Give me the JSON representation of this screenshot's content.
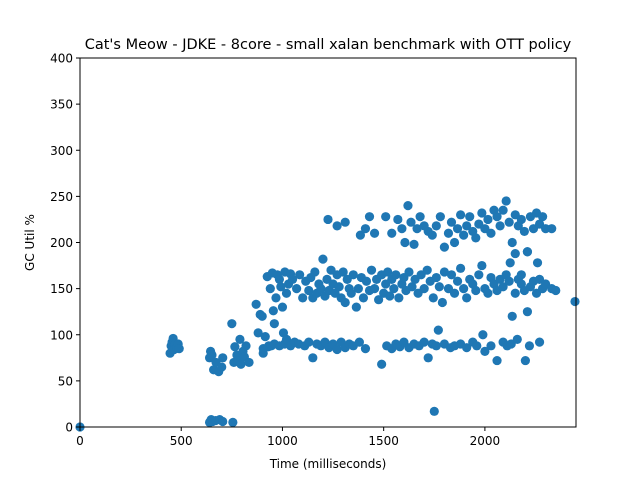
{
  "chart_data": {
    "type": "scatter",
    "title": "Cat's Meow - JDKE - 8core -  small xalan benchmark with OTT policy",
    "xlabel": "Time (milliseconds)",
    "ylabel": "GC Util %",
    "xlim": [
      0,
      2450
    ],
    "ylim": [
      0,
      400
    ],
    "xticks": [
      0,
      500,
      1000,
      1500,
      2000
    ],
    "yticks": [
      0,
      50,
      100,
      150,
      200,
      250,
      300,
      350,
      400
    ],
    "grid": false,
    "legend": "none",
    "color": "#1f77b4",
    "points": [
      [
        0,
        0
      ],
      [
        445,
        80
      ],
      [
        450,
        88
      ],
      [
        455,
        92
      ],
      [
        460,
        96
      ],
      [
        465,
        84
      ],
      [
        470,
        90
      ],
      [
        478,
        86
      ],
      [
        485,
        90
      ],
      [
        490,
        85
      ],
      [
        640,
        5
      ],
      [
        648,
        8
      ],
      [
        655,
        6
      ],
      [
        670,
        7
      ],
      [
        690,
        8
      ],
      [
        705,
        6
      ],
      [
        755,
        5
      ],
      [
        640,
        75
      ],
      [
        645,
        82
      ],
      [
        652,
        78
      ],
      [
        660,
        62
      ],
      [
        672,
        70
      ],
      [
        685,
        60
      ],
      [
        700,
        65
      ],
      [
        705,
        75
      ],
      [
        750,
        112
      ],
      [
        760,
        70
      ],
      [
        765,
        87
      ],
      [
        775,
        78
      ],
      [
        780,
        72
      ],
      [
        790,
        95
      ],
      [
        795,
        68
      ],
      [
        805,
        82
      ],
      [
        812,
        76
      ],
      [
        820,
        88
      ],
      [
        835,
        70
      ],
      [
        870,
        133
      ],
      [
        880,
        102
      ],
      [
        890,
        122
      ],
      [
        900,
        120
      ],
      [
        905,
        80
      ],
      [
        915,
        98
      ],
      [
        925,
        163
      ],
      [
        932,
        88
      ],
      [
        940,
        150
      ],
      [
        950,
        167
      ],
      [
        955,
        126
      ],
      [
        960,
        112
      ],
      [
        968,
        140
      ],
      [
        975,
        165
      ],
      [
        985,
        160
      ],
      [
        992,
        152
      ],
      [
        1000,
        130
      ],
      [
        1005,
        102
      ],
      [
        1012,
        168
      ],
      [
        1020,
        145
      ],
      [
        1030,
        155
      ],
      [
        1040,
        166
      ],
      [
        1050,
        160
      ],
      [
        905,
        85
      ],
      [
        930,
        87
      ],
      [
        945,
        88
      ],
      [
        960,
        90
      ],
      [
        985,
        88
      ],
      [
        1010,
        90
      ],
      [
        1020,
        95
      ],
      [
        1040,
        88
      ],
      [
        1060,
        92
      ],
      [
        1080,
        90
      ],
      [
        1070,
        150
      ],
      [
        1085,
        165
      ],
      [
        1100,
        140
      ],
      [
        1115,
        158
      ],
      [
        1130,
        148
      ],
      [
        1140,
        162
      ],
      [
        1150,
        140
      ],
      [
        1160,
        168
      ],
      [
        1170,
        145
      ],
      [
        1180,
        155
      ],
      [
        1190,
        150
      ],
      [
        1200,
        182
      ],
      [
        1210,
        142
      ],
      [
        1220,
        160
      ],
      [
        1230,
        148
      ],
      [
        1240,
        170
      ],
      [
        1250,
        155
      ],
      [
        1260,
        145
      ],
      [
        1270,
        165
      ],
      [
        1280,
        152
      ],
      [
        1290,
        140
      ],
      [
        1300,
        168
      ],
      [
        1310,
        135
      ],
      [
        1320,
        160
      ],
      [
        1330,
        150
      ],
      [
        1340,
        145
      ],
      [
        1110,
        88
      ],
      [
        1130,
        92
      ],
      [
        1150,
        75
      ],
      [
        1170,
        90
      ],
      [
        1190,
        88
      ],
      [
        1210,
        92
      ],
      [
        1230,
        86
      ],
      [
        1250,
        90
      ],
      [
        1270,
        84
      ],
      [
        1290,
        92
      ],
      [
        1310,
        86
      ],
      [
        1330,
        90
      ],
      [
        1350,
        88
      ],
      [
        1380,
        92
      ],
      [
        1410,
        85
      ],
      [
        1225,
        225
      ],
      [
        1270,
        218
      ],
      [
        1310,
        222
      ],
      [
        1385,
        208
      ],
      [
        1410,
        215
      ],
      [
        1430,
        228
      ],
      [
        1455,
        210
      ],
      [
        1350,
        165
      ],
      [
        1365,
        130
      ],
      [
        1375,
        150
      ],
      [
        1390,
        162
      ],
      [
        1400,
        140
      ],
      [
        1415,
        158
      ],
      [
        1430,
        148
      ],
      [
        1440,
        170
      ],
      [
        1455,
        150
      ],
      [
        1465,
        160
      ],
      [
        1475,
        138
      ],
      [
        1490,
        165
      ],
      [
        1500,
        145
      ],
      [
        1510,
        155
      ],
      [
        1520,
        168
      ],
      [
        1530,
        142
      ],
      [
        1540,
        160
      ],
      [
        1550,
        150
      ],
      [
        1560,
        165
      ],
      [
        1575,
        140
      ],
      [
        1590,
        155
      ],
      [
        1600,
        162
      ],
      [
        1610,
        148
      ],
      [
        1625,
        168
      ],
      [
        1640,
        152
      ],
      [
        1490,
        68
      ],
      [
        1515,
        88
      ],
      [
        1540,
        85
      ],
      [
        1560,
        90
      ],
      [
        1580,
        87
      ],
      [
        1600,
        92
      ],
      [
        1625,
        86
      ],
      [
        1650,
        90
      ],
      [
        1675,
        88
      ],
      [
        1700,
        92
      ],
      [
        1720,
        75
      ],
      [
        1740,
        90
      ],
      [
        1760,
        88
      ],
      [
        1770,
        105
      ],
      [
        1800,
        90
      ],
      [
        1830,
        86
      ],
      [
        1850,
        88
      ],
      [
        1880,
        90
      ],
      [
        1910,
        86
      ],
      [
        1940,
        92
      ],
      [
        1960,
        88
      ],
      [
        1990,
        100
      ],
      [
        2000,
        82
      ],
      [
        2030,
        88
      ],
      [
        2060,
        72
      ],
      [
        2090,
        92
      ],
      [
        2110,
        88
      ],
      [
        2130,
        90
      ],
      [
        2160,
        95
      ],
      [
        2200,
        72
      ],
      [
        2220,
        88
      ],
      [
        2270,
        92
      ],
      [
        1510,
        228
      ],
      [
        1540,
        210
      ],
      [
        1570,
        225
      ],
      [
        1590,
        215
      ],
      [
        1605,
        200
      ],
      [
        1620,
        240
      ],
      [
        1635,
        222
      ],
      [
        1650,
        198
      ],
      [
        1665,
        215
      ],
      [
        1680,
        228
      ],
      [
        1700,
        218
      ],
      [
        1720,
        212
      ],
      [
        1740,
        208
      ],
      [
        1760,
        218
      ],
      [
        1780,
        228
      ],
      [
        1800,
        195
      ],
      [
        1655,
        160
      ],
      [
        1670,
        145
      ],
      [
        1685,
        165
      ],
      [
        1700,
        150
      ],
      [
        1715,
        170
      ],
      [
        1730,
        158
      ],
      [
        1745,
        140
      ],
      [
        1760,
        162
      ],
      [
        1775,
        152
      ],
      [
        1790,
        135
      ],
      [
        1800,
        168
      ],
      [
        1750,
        17
      ],
      [
        1820,
        210
      ],
      [
        1835,
        222
      ],
      [
        1850,
        200
      ],
      [
        1865,
        215
      ],
      [
        1880,
        230
      ],
      [
        1895,
        208
      ],
      [
        1910,
        218
      ],
      [
        1925,
        228
      ],
      [
        1940,
        212
      ],
      [
        1955,
        205
      ],
      [
        1970,
        220
      ],
      [
        1985,
        232
      ],
      [
        2000,
        215
      ],
      [
        2015,
        225
      ],
      [
        2030,
        210
      ],
      [
        2045,
        235
      ],
      [
        2060,
        228
      ],
      [
        2075,
        218
      ],
      [
        2090,
        235
      ],
      [
        2105,
        245
      ],
      [
        2120,
        222
      ],
      [
        2135,
        200
      ],
      [
        2150,
        230
      ],
      [
        2165,
        218
      ],
      [
        2180,
        225
      ],
      [
        2195,
        212
      ],
      [
        2210,
        190
      ],
      [
        2225,
        228
      ],
      [
        2240,
        215
      ],
      [
        2255,
        232
      ],
      [
        2270,
        220
      ],
      [
        2285,
        228
      ],
      [
        2300,
        215
      ],
      [
        2330,
        215
      ],
      [
        1820,
        150
      ],
      [
        1835,
        165
      ],
      [
        1850,
        145
      ],
      [
        1865,
        158
      ],
      [
        1880,
        172
      ],
      [
        1895,
        150
      ],
      [
        1910,
        140
      ],
      [
        1925,
        160
      ],
      [
        1940,
        155
      ],
      [
        1955,
        148
      ],
      [
        1970,
        165
      ],
      [
        1985,
        175
      ],
      [
        2000,
        150
      ],
      [
        2015,
        145
      ],
      [
        2030,
        162
      ],
      [
        2045,
        155
      ],
      [
        2060,
        148
      ],
      [
        2075,
        160
      ],
      [
        2090,
        152
      ],
      [
        2105,
        165
      ],
      [
        2120,
        158
      ],
      [
        2135,
        120
      ],
      [
        2150,
        145
      ],
      [
        2165,
        160
      ],
      [
        2180,
        155
      ],
      [
        2195,
        148
      ],
      [
        2210,
        125
      ],
      [
        2225,
        152
      ],
      [
        2240,
        158
      ],
      [
        2255,
        145
      ],
      [
        2270,
        160
      ],
      [
        2285,
        150
      ],
      [
        2300,
        155
      ],
      [
        2330,
        150
      ],
      [
        2350,
        148
      ],
      [
        2125,
        178
      ],
      [
        2150,
        188
      ],
      [
        2180,
        165
      ],
      [
        2210,
        190
      ],
      [
        2260,
        178
      ],
      [
        2445,
        136
      ]
    ]
  }
}
